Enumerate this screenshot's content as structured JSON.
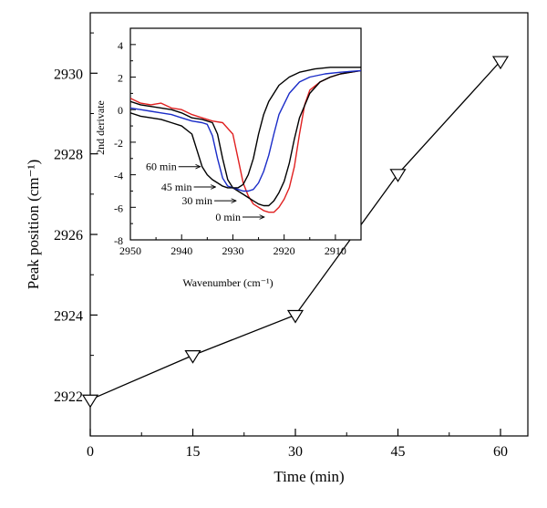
{
  "chart_data": [
    {
      "type": "line",
      "xlabel": "Time (min)",
      "ylabel": "Peak position (cm⁻¹)",
      "xlim": [
        0,
        64
      ],
      "ylim": [
        2921,
        2931.5
      ],
      "xticks": [
        0,
        15,
        30,
        45,
        60
      ],
      "yticks": [
        2922,
        2924,
        2926,
        2928,
        2930
      ],
      "marker": "triangle-down",
      "grid": false,
      "series": [
        {
          "x": [
            0,
            15,
            30,
            45,
            60
          ],
          "y": [
            2921.9,
            2923.0,
            2924.0,
            2927.5,
            2930.3
          ],
          "color": "#000000"
        }
      ]
    },
    {
      "type": "line",
      "xlabel": "Wavenumber (cm⁻¹)",
      "ylabel": "2nd derivate",
      "xlim": [
        2950,
        2905
      ],
      "ylim": [
        -8,
        5
      ],
      "xticks": [
        2950,
        2940,
        2930,
        2920,
        2910
      ],
      "yticks": [
        4,
        2,
        0,
        -2,
        -4,
        -6,
        -8
      ],
      "grid": false,
      "series": [
        {
          "label": "0 min",
          "color": "#e02020",
          "x": [
            2950,
            2948,
            2946,
            2944,
            2942,
            2940,
            2938,
            2936,
            2934,
            2932,
            2930,
            2929,
            2928,
            2927,
            2926,
            2925,
            2924,
            2923,
            2922,
            2921,
            2920,
            2919,
            2918,
            2917,
            2916,
            2915,
            2913,
            2911,
            2909,
            2907,
            2905
          ],
          "y": [
            0.7,
            0.4,
            0.3,
            0.4,
            0.1,
            0.0,
            -0.3,
            -0.5,
            -0.7,
            -0.8,
            -1.5,
            -3.0,
            -4.5,
            -5.3,
            -5.8,
            -6.0,
            -6.2,
            -6.3,
            -6.3,
            -6.0,
            -5.5,
            -4.8,
            -3.5,
            -1.5,
            0.3,
            1.2,
            1.7,
            2.0,
            2.2,
            2.3,
            2.4
          ]
        },
        {
          "label": "30 min",
          "color": "#000000",
          "x": [
            2950,
            2948,
            2946,
            2944,
            2942,
            2940,
            2938,
            2936,
            2934,
            2933,
            2932,
            2931,
            2930,
            2929,
            2928,
            2927,
            2926,
            2925,
            2924,
            2923,
            2922,
            2921,
            2920,
            2919,
            2918,
            2917,
            2915,
            2913,
            2911,
            2909,
            2907,
            2905
          ],
          "y": [
            0.5,
            0.3,
            0.2,
            0.1,
            0.0,
            -0.2,
            -0.5,
            -0.6,
            -0.8,
            -1.5,
            -3.0,
            -4.3,
            -4.8,
            -5.0,
            -5.2,
            -5.4,
            -5.6,
            -5.8,
            -5.9,
            -5.9,
            -5.6,
            -5.1,
            -4.4,
            -3.3,
            -1.8,
            -0.5,
            1.0,
            1.7,
            2.0,
            2.2,
            2.3,
            2.4
          ]
        },
        {
          "label": "45 min",
          "color": "#1a2cc8",
          "x": [
            2950,
            2948,
            2946,
            2944,
            2942,
            2940,
            2938,
            2936,
            2935,
            2934,
            2933,
            2932,
            2931,
            2930,
            2929,
            2928,
            2927,
            2926,
            2925,
            2924,
            2923,
            2922,
            2921,
            2919,
            2917,
            2915,
            2912,
            2909,
            2905
          ],
          "y": [
            0.1,
            0.0,
            -0.1,
            -0.2,
            -0.3,
            -0.5,
            -0.7,
            -0.8,
            -0.9,
            -1.6,
            -3.0,
            -4.2,
            -4.7,
            -4.8,
            -4.9,
            -5.0,
            -5.0,
            -4.9,
            -4.5,
            -3.8,
            -2.8,
            -1.5,
            -0.3,
            1.0,
            1.7,
            2.0,
            2.2,
            2.3,
            2.4
          ]
        },
        {
          "label": "60 min",
          "color": "#000000",
          "x": [
            2950,
            2948,
            2946,
            2944,
            2942,
            2940,
            2938,
            2937,
            2936,
            2935,
            2934,
            2933,
            2932,
            2931,
            2930,
            2929,
            2928,
            2927,
            2926,
            2925,
            2924,
            2923,
            2922,
            2921,
            2919,
            2917,
            2914,
            2911,
            2908,
            2905
          ],
          "y": [
            -0.2,
            -0.4,
            -0.5,
            -0.6,
            -0.8,
            -1.0,
            -1.5,
            -2.5,
            -3.5,
            -4.0,
            -4.3,
            -4.5,
            -4.7,
            -4.8,
            -4.8,
            -4.8,
            -4.6,
            -4.0,
            -3.0,
            -1.5,
            -0.3,
            0.5,
            1.0,
            1.5,
            2.0,
            2.3,
            2.5,
            2.6,
            2.6,
            2.6
          ]
        }
      ],
      "annotations": [
        {
          "text": "60 min",
          "x": 2936.0,
          "y": -3.5
        },
        {
          "text": "45 min",
          "x": 2933.0,
          "y": -4.75
        },
        {
          "text": "30 min",
          "x": 2929.0,
          "y": -5.6
        },
        {
          "text": "0 min",
          "x": 2923.5,
          "y": -6.6
        }
      ]
    }
  ]
}
